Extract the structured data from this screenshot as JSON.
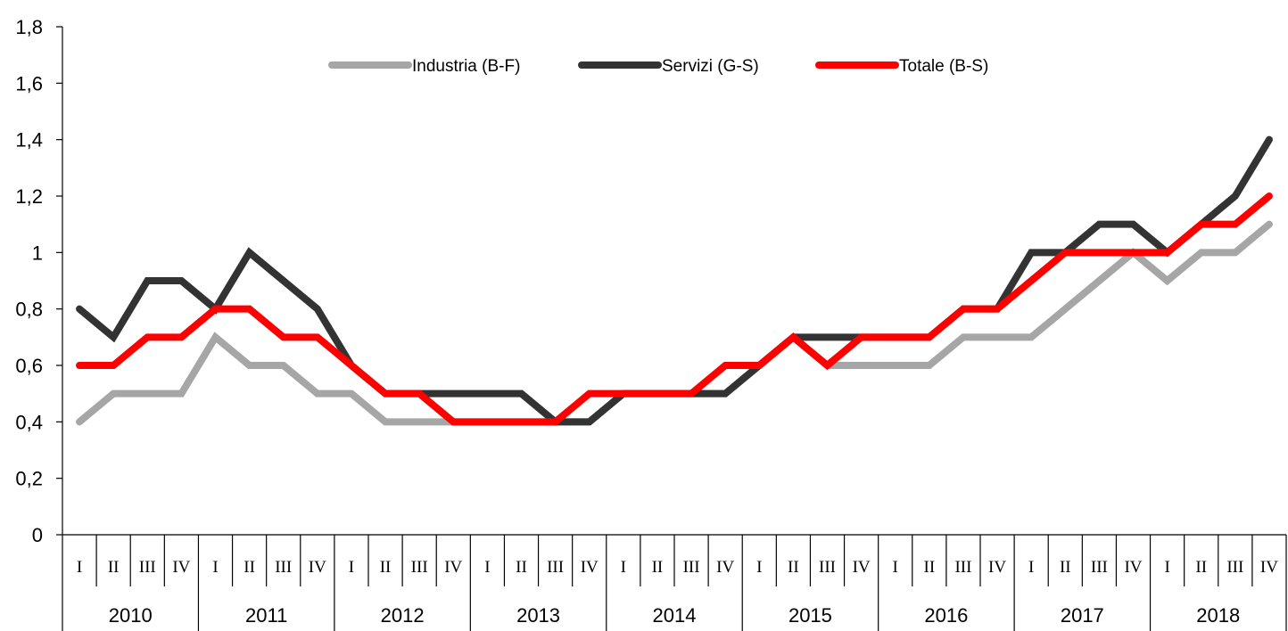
{
  "chart_data": {
    "type": "line",
    "title": "",
    "xlabel": "",
    "ylabel": "",
    "ylim": [
      0,
      1.8
    ],
    "y_ticks": [
      "0",
      "0,2",
      "0,4",
      "0,6",
      "0,8",
      "1",
      "1,2",
      "1,4",
      "1,6",
      "1,8"
    ],
    "grid": false,
    "legend_position": "top",
    "years": [
      "2010",
      "2011",
      "2012",
      "2013",
      "2014",
      "2015",
      "2016",
      "2017",
      "2018"
    ],
    "quarters": [
      "I",
      "II",
      "III",
      "IV"
    ],
    "series": [
      {
        "name": "Industria (B-F)",
        "color": "#a6a6a6",
        "values": [
          0.4,
          0.5,
          0.5,
          0.5,
          0.7,
          0.6,
          0.6,
          0.5,
          0.5,
          0.4,
          0.4,
          0.4,
          0.4,
          0.4,
          0.4,
          0.4,
          0.5,
          0.5,
          0.5,
          0.5,
          0.6,
          0.7,
          0.6,
          0.6,
          0.6,
          0.6,
          0.7,
          0.7,
          0.7,
          0.8,
          0.9,
          1.0,
          0.9,
          1.0,
          1.0,
          1.1
        ]
      },
      {
        "name": "Servizi (G-S)",
        "color": "#333333",
        "values": [
          0.8,
          0.7,
          0.9,
          0.9,
          0.8,
          1.0,
          0.9,
          0.8,
          0.6,
          0.5,
          0.5,
          0.5,
          0.5,
          0.5,
          0.4,
          0.4,
          0.5,
          0.5,
          0.5,
          0.5,
          0.6,
          0.7,
          0.7,
          0.7,
          0.7,
          0.7,
          0.8,
          0.8,
          1.0,
          1.0,
          1.1,
          1.1,
          1.0,
          1.1,
          1.2,
          1.4
        ]
      },
      {
        "name": "Totale (B-S)",
        "color": "#ff0000",
        "values": [
          0.6,
          0.6,
          0.7,
          0.7,
          0.8,
          0.8,
          0.7,
          0.7,
          0.6,
          0.5,
          0.5,
          0.4,
          0.4,
          0.4,
          0.4,
          0.5,
          0.5,
          0.5,
          0.5,
          0.6,
          0.6,
          0.7,
          0.6,
          0.7,
          0.7,
          0.7,
          0.8,
          0.8,
          0.9,
          1.0,
          1.0,
          1.0,
          1.0,
          1.1,
          1.1,
          1.2
        ]
      }
    ]
  }
}
